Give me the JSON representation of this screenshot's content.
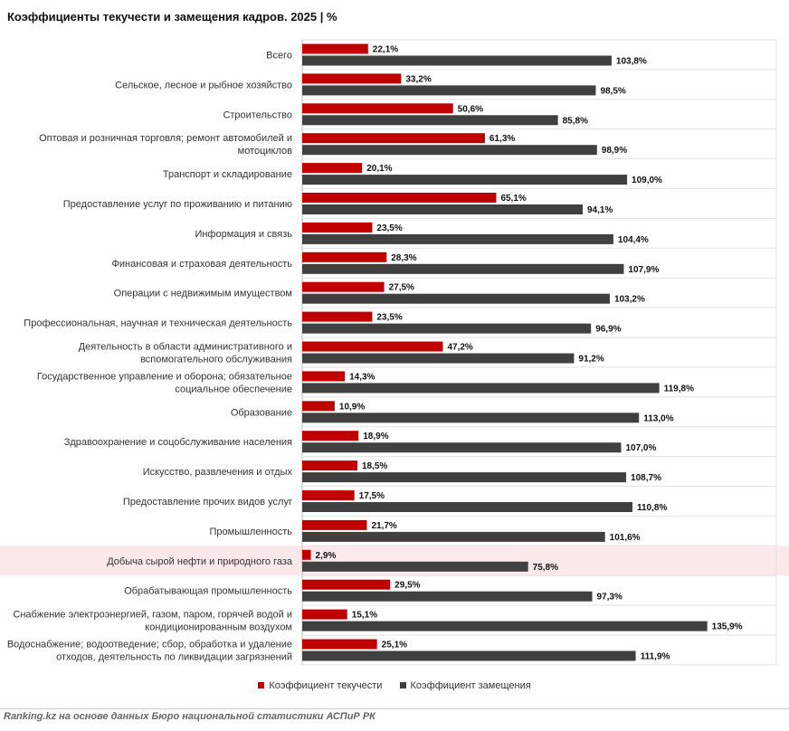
{
  "chart_data": {
    "type": "bar",
    "orientation": "horizontal",
    "title": "Коэффициенты текучести и замещения кадров. 2025 | %",
    "categories": [
      "Всего",
      "Сельское, лесное и рыбное хозяйство",
      "Строительство",
      "Оптовая и розничная торговля; ремонт автомобилей и мотоциклов",
      "Транспорт и складирование",
      "Предоставление услуг по проживанию и питанию",
      "Информация и связь",
      "Финансовая и страховая деятельность",
      "Операции с недвижимым имуществом",
      "Профессиональная, научная и техническая деятельность",
      "Деятельность в области административного и вспомогательного обслуживания",
      "Государственное управление и оборона; обязательное социальное обеспечение",
      "Образование",
      "Здравоохранение и соцобслуживание населения",
      "Искусство, развлечения и отдых",
      "Предоставление прочих видов услуг",
      "Промышленность",
      "Добыча сырой нефти и природного газа",
      "Обрабатывающая промышленность",
      "Снабжение электроэнергией, газом, паром, горячей водой и кондиционированным воздухом",
      "Водоснабжение; водоотведение; сбор, обработка и удаление отходов, деятельность по ликвидации загрязнений"
    ],
    "category_lines": [
      [
        "Всего"
      ],
      [
        "Сельское, лесное и рыбное хозяйство"
      ],
      [
        "Строительство"
      ],
      [
        "Оптовая и розничная торговля; ремонт автомобилей и",
        "мотоциклов"
      ],
      [
        "Транспорт и складирование"
      ],
      [
        "Предоставление услуг по проживанию и питанию"
      ],
      [
        "Информация и связь"
      ],
      [
        "Финансовая и страховая деятельность"
      ],
      [
        "Операции с недвижимым имуществом"
      ],
      [
        "Профессиональная, научная и техническая деятельность"
      ],
      [
        "Деятельность в области административного и",
        "вспомогательного обслуживания"
      ],
      [
        "Государственное управление и оборона; обязательное",
        "социальное обеспечение"
      ],
      [
        "Образование"
      ],
      [
        "Здравоохранение и соцобслуживание населения"
      ],
      [
        "Искусство, развлечения и отдых"
      ],
      [
        "Предоставление прочих видов услуг"
      ],
      [
        "Промышленность"
      ],
      [
        "Добыча сырой нефти и природного газа"
      ],
      [
        "Обрабатывающая промышленность"
      ],
      [
        "Снабжение электроэнергией, газом, паром, горячей водой и",
        "кондиционированным воздухом"
      ],
      [
        "Водоснабжение; водоотведение; сбор, обработка и удаление",
        "отходов, деятельность по ликвидации загрязнений"
      ]
    ],
    "series": [
      {
        "name": "Коэффициент текучести",
        "color": "#c00000",
        "values": [
          22.1,
          33.2,
          50.6,
          61.3,
          20.1,
          65.1,
          23.5,
          28.3,
          27.5,
          23.5,
          47.2,
          14.3,
          10.9,
          18.9,
          18.5,
          17.5,
          21.7,
          2.9,
          29.5,
          15.1,
          25.1
        ],
        "labels": [
          "22,1%",
          "33,2%",
          "50,6%",
          "61,3%",
          "20,1%",
          "65,1%",
          "23,5%",
          "28,3%",
          "27,5%",
          "23,5%",
          "47,2%",
          "14,3%",
          "10,9%",
          "18,9%",
          "18,5%",
          "17,5%",
          "21,7%",
          "2,9%",
          "29,5%",
          "15,1%",
          "25,1%"
        ]
      },
      {
        "name": "Коэффициент замещения",
        "color": "#404040",
        "values": [
          103.8,
          98.5,
          85.8,
          98.9,
          109.0,
          94.1,
          104.4,
          107.9,
          103.2,
          96.9,
          91.2,
          119.8,
          113.0,
          107.0,
          108.7,
          110.8,
          101.6,
          75.8,
          97.3,
          135.9,
          111.9
        ],
        "labels": [
          "103,8%",
          "98,5%",
          "85,8%",
          "98,9%",
          "109,0%",
          "94,1%",
          "104,4%",
          "107,9%",
          "103,2%",
          "96,9%",
          "91,2%",
          "119,8%",
          "113,0%",
          "107,0%",
          "108,7%",
          "110,8%",
          "101,6%",
          "75,8%",
          "97,3%",
          "135,9%",
          "111,9%"
        ]
      }
    ],
    "highlighted_category": "Добыча сырой нефти и природного газа",
    "highlight_color": "#fbe9e9",
    "grid": true,
    "legend_position": "bottom"
  },
  "source": "Ranking.kz на основе данных Бюро национальной статистики АСПиР РК"
}
